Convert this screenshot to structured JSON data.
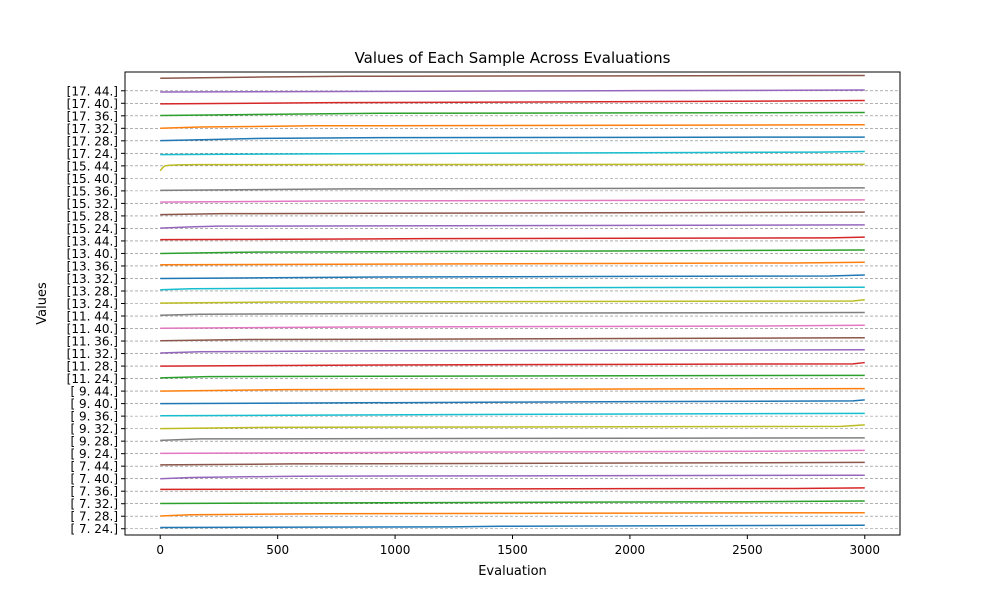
{
  "chart_data": {
    "type": "line",
    "title": "Values of Each Sample Across Evaluations",
    "xlabel": "Evaluation",
    "ylabel": "Values",
    "xlim": [
      -150,
      3150
    ],
    "ylim": [
      -0.5,
      36.5
    ],
    "x_ticks": [
      0,
      500,
      1000,
      1500,
      2000,
      2500,
      3000
    ],
    "x_tick_labels": [
      "0",
      "500",
      "1000",
      "1500",
      "2000",
      "2500",
      "3000"
    ],
    "y_tick_labels": [
      "[ 7. 24.]",
      "[ 7. 28.]",
      "[ 7. 32.]",
      "[ 7. 36.]",
      "[ 7. 40.]",
      "[ 7. 44.]",
      "[ 9. 24.]",
      "[ 9. 28.]",
      "[ 9. 32.]",
      "[ 9. 36.]",
      "[ 9. 40.]",
      "[ 9. 44.]",
      "[11. 24.]",
      "[11. 28.]",
      "[11. 32.]",
      "[11. 36.]",
      "[11. 40.]",
      "[11. 44.]",
      "[13. 24.]",
      "[13. 28.]",
      "[13. 32.]",
      "[13. 36.]",
      "[13. 40.]",
      "[13. 44.]",
      "[15. 24.]",
      "[15. 28.]",
      "[15. 32.]",
      "[15. 36.]",
      "[15. 40.]",
      "[15. 44.]",
      "[17. 24.]",
      "[17. 28.]",
      "[17. 32.]",
      "[17. 36.]",
      "[17. 40.]",
      "[17. 44.]"
    ],
    "grid": "horizontal dashed",
    "series": [
      {
        "color": "#1f77b4",
        "x": [
          0,
          1240,
          1450,
          3000
        ],
        "y": [
          0.1,
          0.15,
          0.2,
          0.28
        ]
      },
      {
        "color": "#ff7f0e",
        "x": [
          0,
          130,
          680,
          3000
        ],
        "y": [
          1.02,
          1.12,
          1.2,
          1.28
        ]
      },
      {
        "color": "#2ca02c",
        "x": [
          0,
          1350,
          2500,
          3000
        ],
        "y": [
          2.02,
          2.1,
          2.16,
          2.22
        ]
      },
      {
        "color": "#d62728",
        "x": [
          0,
          2700,
          3000
        ],
        "y": [
          3.15,
          3.22,
          3.27
        ]
      },
      {
        "color": "#9467bd",
        "x": [
          0,
          130,
          580,
          3000
        ],
        "y": [
          4.0,
          4.1,
          4.2,
          4.28
        ]
      },
      {
        "color": "#8c564b",
        "x": [
          0,
          560,
          1850,
          3000
        ],
        "y": [
          5.1,
          5.18,
          5.24,
          5.3
        ]
      },
      {
        "color": "#e377c2",
        "x": [
          0,
          1250,
          2650,
          3000
        ],
        "y": [
          6.02,
          6.12,
          6.2,
          6.26
        ]
      },
      {
        "color": "#7f7f7f",
        "x": [
          0,
          170,
          3000
        ],
        "y": [
          7.06,
          7.18,
          7.26
        ]
      },
      {
        "color": "#bcbd22",
        "x": [
          0,
          450,
          2900,
          3000
        ],
        "y": [
          8.0,
          8.1,
          8.18,
          8.3
        ]
      },
      {
        "color": "#17becf",
        "x": [
          0,
          1180,
          3000
        ],
        "y": [
          9.03,
          9.12,
          9.22
        ]
      },
      {
        "color": "#1f77b4",
        "x": [
          0,
          1530,
          2950,
          3000
        ],
        "y": [
          10.0,
          10.12,
          10.22,
          10.3
        ]
      },
      {
        "color": "#ff7f0e",
        "x": [
          0,
          530,
          3000
        ],
        "y": [
          11.0,
          11.12,
          11.2
        ]
      },
      {
        "color": "#2ca02c",
        "x": [
          0,
          200,
          3000
        ],
        "y": [
          12.06,
          12.16,
          12.26
        ]
      },
      {
        "color": "#d62728",
        "x": [
          0,
          1150,
          2950,
          3000
        ],
        "y": [
          13.0,
          13.1,
          13.18,
          13.28
        ]
      },
      {
        "color": "#9467bd",
        "x": [
          0,
          170,
          950,
          3000
        ],
        "y": [
          14.04,
          14.14,
          14.22,
          14.3
        ]
      },
      {
        "color": "#8c564b",
        "x": [
          0,
          370,
          2000,
          3000
        ],
        "y": [
          15.02,
          15.12,
          15.2,
          15.26
        ]
      },
      {
        "color": "#e377c2",
        "x": [
          0,
          820,
          2550,
          3000
        ],
        "y": [
          16.02,
          16.12,
          16.2,
          16.26
        ]
      },
      {
        "color": "#7f7f7f",
        "x": [
          0,
          170,
          1200,
          3000
        ],
        "y": [
          17.06,
          17.14,
          17.22,
          17.28
        ]
      },
      {
        "color": "#bcbd22",
        "x": [
          0,
          500,
          2950,
          3000
        ],
        "y": [
          18.03,
          18.12,
          18.2,
          18.3
        ]
      },
      {
        "color": "#17becf",
        "x": [
          0,
          130,
          760,
          3000
        ],
        "y": [
          19.1,
          19.18,
          19.24,
          19.3
        ]
      },
      {
        "color": "#1f77b4",
        "x": [
          0,
          950,
          2850,
          3000
        ],
        "y": [
          20.0,
          20.12,
          20.2,
          20.28
        ]
      },
      {
        "color": "#ff7f0e",
        "x": [
          0,
          1150,
          2700,
          3000
        ],
        "y": [
          21.1,
          21.16,
          21.24,
          21.3
        ]
      },
      {
        "color": "#2ca02c",
        "x": [
          0,
          350,
          1920,
          3000
        ],
        "y": [
          22.0,
          22.1,
          22.2,
          22.28
        ]
      },
      {
        "color": "#d62728",
        "x": [
          0,
          1130,
          2850,
          3000
        ],
        "y": [
          23.1,
          23.18,
          23.24,
          23.3
        ]
      },
      {
        "color": "#9467bd",
        "x": [
          0,
          130,
          250,
          3000
        ],
        "y": [
          24.02,
          24.12,
          24.18,
          24.28
        ]
      },
      {
        "color": "#8c564b",
        "x": [
          0,
          270,
          1700,
          3000
        ],
        "y": [
          25.1,
          25.18,
          25.24,
          25.3
        ]
      },
      {
        "color": "#e377c2",
        "x": [
          0,
          800,
          3000
        ],
        "y": [
          26.1,
          26.2,
          26.28
        ]
      },
      {
        "color": "#7f7f7f",
        "x": [
          0,
          800,
          3000
        ],
        "y": [
          27.04,
          27.16,
          27.24
        ]
      },
      {
        "color": "#bcbd22",
        "x": [
          0,
          10,
          20,
          40,
          80,
          150,
          3000
        ],
        "y": [
          28.6,
          28.85,
          29.0,
          29.05,
          29.08,
          29.1,
          29.12
        ]
      },
      {
        "color": "#17becf",
        "x": [
          0,
          1200,
          2800,
          3000
        ],
        "y": [
          29.9,
          30.0,
          30.1,
          30.15
        ]
      },
      {
        "color": "#1f77b4",
        "x": [
          0,
          200,
          440,
          1000,
          3000
        ],
        "y": [
          31.02,
          31.1,
          31.2,
          31.26,
          31.3
        ]
      },
      {
        "color": "#ff7f0e",
        "x": [
          0,
          170,
          660,
          3000
        ],
        "y": [
          32.0,
          32.1,
          32.2,
          32.28
        ]
      },
      {
        "color": "#2ca02c",
        "x": [
          0,
          500,
          950,
          3000
        ],
        "y": [
          33.02,
          33.12,
          33.2,
          33.26
        ]
      },
      {
        "color": "#d62728",
        "x": [
          0,
          740,
          2300,
          3000
        ],
        "y": [
          33.95,
          34.05,
          34.15,
          34.22
        ]
      },
      {
        "color": "#9467bd",
        "x": [
          0,
          1900,
          3000
        ],
        "y": [
          34.9,
          35.0,
          35.06
        ]
      },
      {
        "color": "#8c564b",
        "x": [
          0,
          430,
          800,
          3000
        ],
        "y": [
          36.0,
          36.1,
          36.16,
          36.22
        ]
      }
    ]
  }
}
